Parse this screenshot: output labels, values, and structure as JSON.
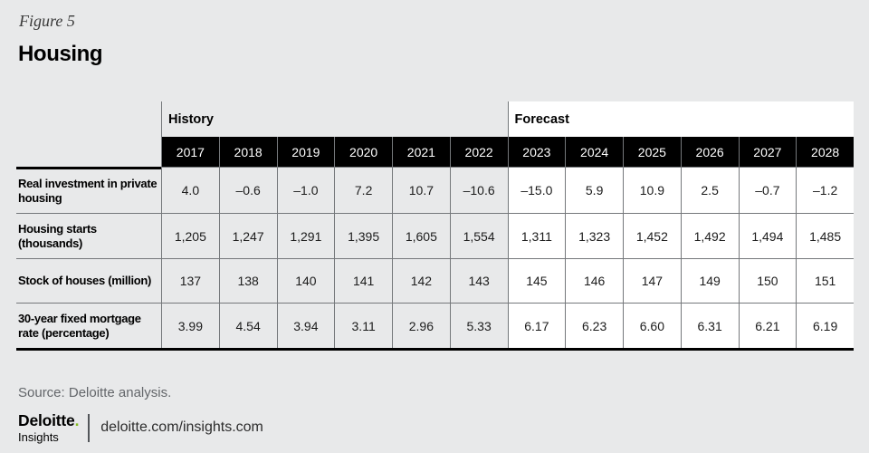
{
  "figure": {
    "label": "Figure 5",
    "title": "Housing"
  },
  "table": {
    "history_label": "History",
    "forecast_label": "Forecast",
    "years_history": [
      "2017",
      "2018",
      "2019",
      "2020",
      "2021",
      "2022"
    ],
    "years_forecast": [
      "2023",
      "2024",
      "2025",
      "2026",
      "2027",
      "2028"
    ],
    "rows": [
      {
        "label": "Real investment in private housing",
        "history": [
          "4.0",
          "–0.6",
          "–1.0",
          "7.2",
          "10.7",
          "–10.6"
        ],
        "forecast": [
          "–15.0",
          "5.9",
          "10.9",
          "2.5",
          "–0.7",
          "–1.2"
        ]
      },
      {
        "label": "Housing starts (thousands)",
        "history": [
          "1,205",
          "1,247",
          "1,291",
          "1,395",
          "1,605",
          "1,554"
        ],
        "forecast": [
          "1,311",
          "1,323",
          "1,452",
          "1,492",
          "1,494",
          "1,485"
        ]
      },
      {
        "label": "Stock of houses (million)",
        "history": [
          "137",
          "138",
          "140",
          "141",
          "142",
          "143"
        ],
        "forecast": [
          "145",
          "146",
          "147",
          "149",
          "150",
          "151"
        ]
      },
      {
        "label": "30-year fixed mortgage rate (percentage)",
        "history": [
          "3.99",
          "4.54",
          "3.94",
          "3.11",
          "2.96",
          "5.33"
        ],
        "forecast": [
          "6.17",
          "6.23",
          "6.60",
          "6.31",
          "6.21",
          "6.19"
        ]
      }
    ]
  },
  "chart_data": {
    "type": "table",
    "title": "Housing",
    "categories": [
      "2017",
      "2018",
      "2019",
      "2020",
      "2021",
      "2022",
      "2023",
      "2024",
      "2025",
      "2026",
      "2027",
      "2028"
    ],
    "history_years": [
      "2017",
      "2018",
      "2019",
      "2020",
      "2021",
      "2022"
    ],
    "forecast_years": [
      "2023",
      "2024",
      "2025",
      "2026",
      "2027",
      "2028"
    ],
    "series": [
      {
        "name": "Real investment in private housing",
        "values": [
          4.0,
          -0.6,
          -1.0,
          7.2,
          10.7,
          -10.6,
          -15.0,
          5.9,
          10.9,
          2.5,
          -0.7,
          -1.2
        ]
      },
      {
        "name": "Housing starts (thousands)",
        "values": [
          1205,
          1247,
          1291,
          1395,
          1605,
          1554,
          1311,
          1323,
          1452,
          1492,
          1494,
          1485
        ]
      },
      {
        "name": "Stock of houses (million)",
        "values": [
          137,
          138,
          140,
          141,
          142,
          143,
          145,
          146,
          147,
          149,
          150,
          151
        ]
      },
      {
        "name": "30-year fixed mortgage rate (percentage)",
        "values": [
          3.99,
          4.54,
          3.94,
          3.11,
          2.96,
          5.33,
          6.17,
          6.23,
          6.6,
          6.31,
          6.21,
          6.19
        ]
      }
    ]
  },
  "source": "Source: Deloitte analysis.",
  "footer": {
    "logo_line1": "Deloitte",
    "logo_dot": ".",
    "logo_line2": "Insights",
    "url": "deloitte.com/insights.com"
  },
  "colors": {
    "page_background": "#e8e9ea",
    "header_black": "#000000",
    "forecast_background": "#ffffff",
    "grid_line": "#75787b",
    "accent_green": "#86bc25",
    "source_text": "#63666a"
  }
}
